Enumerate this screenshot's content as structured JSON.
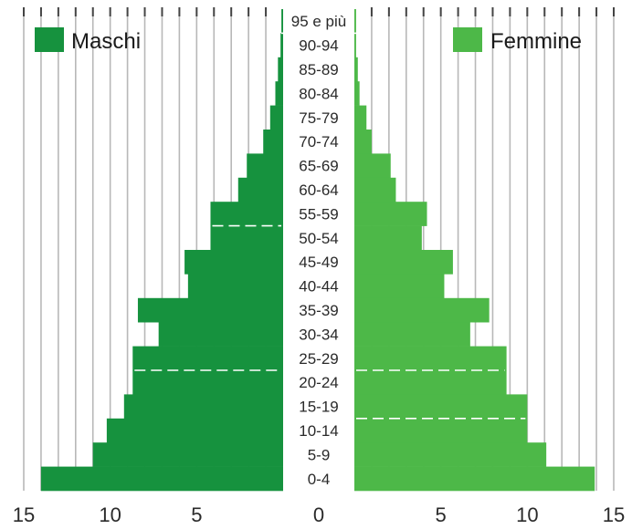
{
  "chart_data": {
    "type": "bar",
    "orientation": "horizontal",
    "layout": "population-pyramid",
    "categories": [
      "95 e più",
      "90-94",
      "85-89",
      "80-84",
      "75-79",
      "70-74",
      "65-69",
      "60-64",
      "55-59",
      "50-54",
      "45-49",
      "40-44",
      "35-39",
      "30-34",
      "25-29",
      "20-24",
      "15-19",
      "10-14",
      "5-9",
      "0-4"
    ],
    "series": [
      {
        "name": "Maschi",
        "side": "left",
        "color": "#16923e",
        "values": [
          0.1,
          0.15,
          0.3,
          0.45,
          0.75,
          1.15,
          2.1,
          2.6,
          4.2,
          4.2,
          5.7,
          5.5,
          8.4,
          7.2,
          8.7,
          8.7,
          9.2,
          10.2,
          11.0,
          14.0
        ]
      },
      {
        "name": "Femmine",
        "side": "right",
        "color": "#4db848",
        "values": [
          0.1,
          0.1,
          0.2,
          0.3,
          0.7,
          1.0,
          2.1,
          2.4,
          4.2,
          3.9,
          5.7,
          5.2,
          7.8,
          6.7,
          8.8,
          8.8,
          10.0,
          10.0,
          11.1,
          13.9
        ]
      }
    ],
    "xaxis_ticks": [
      "15",
      "10",
      "5",
      "0",
      "5",
      "10",
      "15"
    ],
    "xlim": [
      0,
      15
    ],
    "title": "",
    "xlabel": "",
    "ylabel": "",
    "grid": "vertical",
    "legend": [
      {
        "label": "Maschi",
        "color": "#16923e",
        "position": "top-left"
      },
      {
        "label": "Femmine",
        "color": "#4db848",
        "position": "top-right"
      }
    ]
  }
}
